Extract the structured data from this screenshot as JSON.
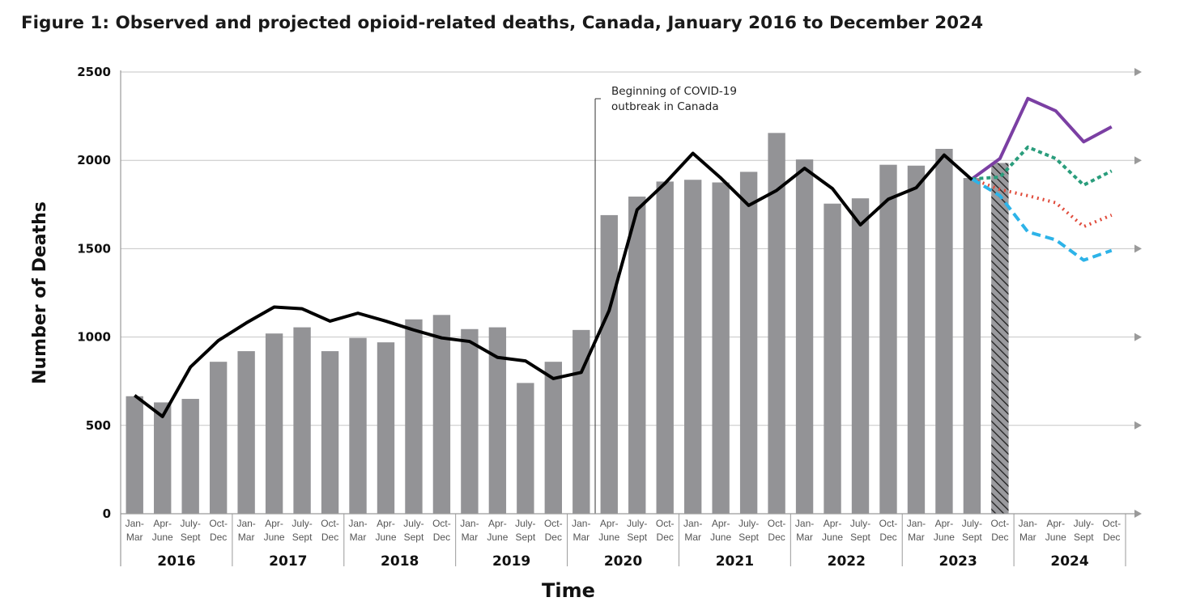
{
  "title": "Figure 1: Observed and projected opioid-related deaths, Canada, January 2016 to December 2024",
  "chart_data": {
    "type": "bar",
    "title": "Figure 1: Observed and projected opioid-related deaths, Canada, January 2016 to December 2024",
    "xlabel": "Time",
    "ylabel": "Number of Deaths",
    "ylim": [
      0,
      2500
    ],
    "yticks": [
      0,
      500,
      1000,
      1500,
      2000,
      2500
    ],
    "grid": true,
    "quarter_labels": [
      "Jan-Mar",
      "Apr-June",
      "July-Sept",
      "Oct-Dec"
    ],
    "years": [
      "2016",
      "2017",
      "2018",
      "2019",
      "2020",
      "2021",
      "2022",
      "2023",
      "2024"
    ],
    "bars": [
      665,
      630,
      650,
      860,
      920,
      1020,
      1055,
      920,
      995,
      970,
      1100,
      1125,
      1045,
      1055,
      740,
      860,
      1040,
      1690,
      1795,
      1880,
      1890,
      1875,
      1935,
      2155,
      2005,
      1755,
      1785,
      1975,
      1970,
      2065,
      1900
    ],
    "hatched_bar": {
      "quarter_index": 31,
      "value": 1985
    },
    "observed_line": [
      670,
      550,
      830,
      980,
      1080,
      1170,
      1160,
      1090,
      1135,
      1090,
      1040,
      995,
      975,
      885,
      865,
      765,
      800,
      1150,
      1720,
      1870,
      2040,
      1900,
      1745,
      1830,
      1955,
      1840,
      1635,
      1780,
      1845,
      2030,
      1890
    ],
    "projections": [
      {
        "name": "purple-solid",
        "color": "#7b3fa3",
        "dash": "",
        "values": [
          1895,
          2010,
          2350,
          2280,
          2105,
          2190
        ]
      },
      {
        "name": "green-dotted",
        "color": "#2a9d7c",
        "dash": "5 4",
        "values": [
          1895,
          1905,
          2075,
          2010,
          1860,
          1940
        ]
      },
      {
        "name": "red-dotted",
        "color": "#e04a3a",
        "dash": "2 5",
        "values": [
          1895,
          1835,
          1800,
          1760,
          1625,
          1690
        ]
      },
      {
        "name": "blue-dashed",
        "color": "#2db3e8",
        "dash": "11 6",
        "values": [
          1895,
          1800,
          1595,
          1550,
          1435,
          1490
        ]
      }
    ],
    "projection_start_index": 30,
    "annotation": {
      "text_line1": "Beginning of COVID-19",
      "text_line2": "outbreak in Canada",
      "quarter_index": 17
    },
    "colors": {
      "bar": "#939396",
      "observed": "#000000",
      "grid": "#c6c6c6",
      "axis": "#9a9a9a"
    }
  }
}
